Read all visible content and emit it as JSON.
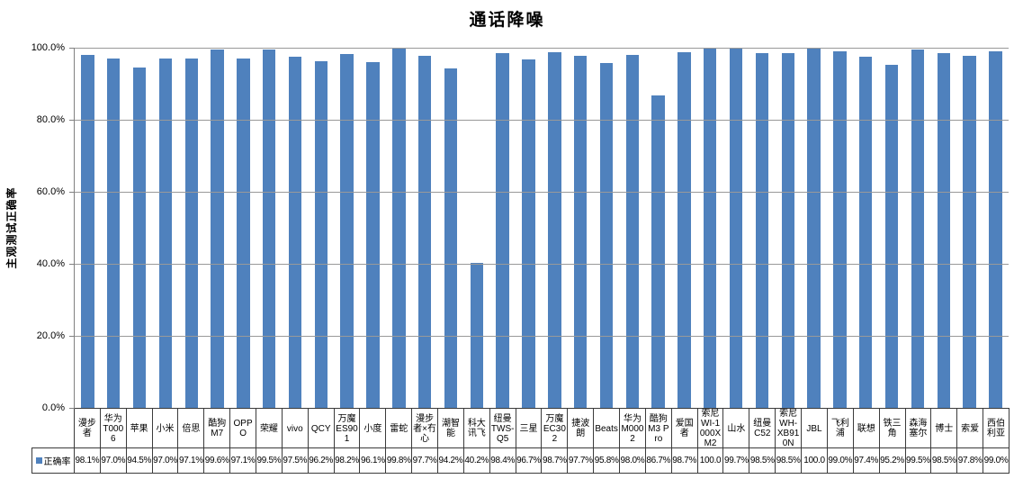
{
  "chart_data": {
    "type": "bar",
    "title": "通话降噪",
    "xlabel": "",
    "ylabel": "主观测试正确率",
    "ylim": [
      0,
      100
    ],
    "y_ticks": [
      "0.0%",
      "20.0%",
      "40.0%",
      "60.0%",
      "80.0%",
      "100.0%"
    ],
    "grid": true,
    "legend_position": "bottom-table-left",
    "categories": [
      "漫步者",
      "华为T0006",
      "苹果",
      "小米",
      "倍思",
      "酷狗M7",
      "OPPO",
      "荣耀",
      "vivo",
      "QCY",
      "万魔ES901",
      "小度",
      "雷蛇",
      "漫步者×冇心",
      "潮智能",
      "科大讯飞",
      "纽曼TWS-Q5",
      "三星",
      "万魔EC302",
      "捷波朗",
      "Beats",
      "华为M0002",
      "酷狗M3 Pro",
      "爱国者",
      "索尼WI-1000XM2",
      "山水",
      "纽曼C52",
      "索尼WH-XB910N",
      "JBL",
      "飞利浦",
      "联想",
      "铁三角",
      "森海塞尔",
      "博士",
      "索爱",
      "西伯利亚"
    ],
    "series": [
      {
        "name": "正确率",
        "values": [
          98.1,
          97.0,
          94.5,
          97.0,
          97.1,
          99.6,
          97.1,
          99.5,
          97.5,
          96.2,
          98.2,
          96.1,
          99.8,
          97.7,
          94.2,
          40.2,
          98.4,
          96.7,
          98.7,
          97.7,
          95.8,
          98.0,
          86.7,
          98.7,
          100.0,
          99.7,
          98.5,
          98.5,
          100.0,
          99.0,
          97.4,
          95.2,
          99.5,
          98.5,
          97.8,
          99.0
        ],
        "display_values": [
          "98.1%",
          "97.0%",
          "94.5%",
          "97.0%",
          "97.1%",
          "99.6%",
          "97.1%",
          "99.5%",
          "97.5%",
          "96.2%",
          "98.2%",
          "96.1%",
          "99.8%",
          "97.7%",
          "94.2%",
          "40.2%",
          "98.4%",
          "96.7%",
          "98.7%",
          "97.7%",
          "95.8%",
          "98.0%",
          "86.7%",
          "98.7%",
          "100.0",
          "99.7%",
          "98.5%",
          "98.5%",
          "100.0",
          "99.0%",
          "97.4%",
          "95.2%",
          "99.5%",
          "98.5%",
          "97.8%",
          "99.0%"
        ]
      }
    ]
  },
  "colors": {
    "bar": "#4F81BD",
    "gridline": "#999999",
    "axis": "#808080",
    "table_border": "#3B3B3B",
    "text": "#000000",
    "background": "#FFFFFF"
  }
}
